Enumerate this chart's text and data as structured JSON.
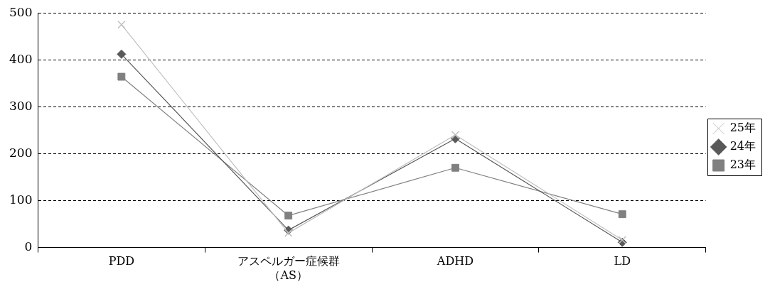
{
  "chart_data": {
    "type": "line",
    "categories": [
      "PDD",
      "アスペルガー症候群（AS）",
      "ADHD",
      "LD"
    ],
    "series": [
      {
        "name": "25年",
        "color": "#bfbfbf",
        "marker": "cross",
        "values": [
          475,
          31,
          240,
          16
        ]
      },
      {
        "name": "24年",
        "color": "#595959",
        "marker": "diamond",
        "values": [
          412,
          37,
          232,
          11
        ]
      },
      {
        "name": "23年",
        "color": "#808080",
        "marker": "square",
        "values": [
          364,
          68,
          170,
          71
        ]
      }
    ],
    "ylim": [
      0,
      500
    ],
    "yticks": [
      0,
      100,
      200,
      300,
      400,
      500
    ],
    "grid": "y",
    "legend": "right"
  }
}
